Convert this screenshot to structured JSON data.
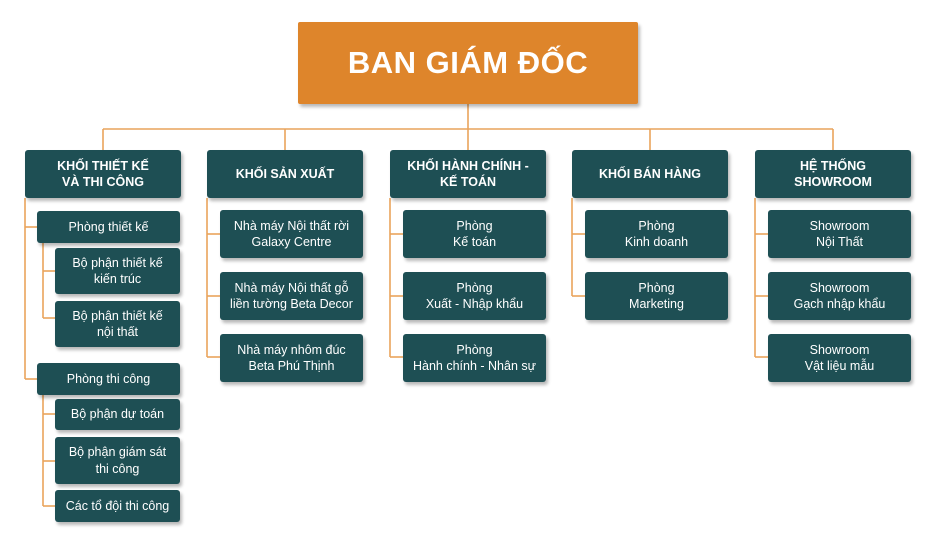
{
  "top": {
    "label": "BAN GIÁM ĐỐC"
  },
  "columns": [
    {
      "header": "KHỐI THIẾT KẾ\nVÀ THI CÔNG",
      "groups": [
        {
          "label": "Phòng thiết kế",
          "subitems": [
            "Bộ phận thiết kế\nkiến trúc",
            "Bộ phận thiết kế\nnội thất"
          ]
        },
        {
          "label": "Phòng thi công",
          "subitems": [
            "Bộ phận dự toán",
            "Bộ phận giám sát\nthi công",
            "Các tổ đội thi công"
          ]
        }
      ]
    },
    {
      "header": "KHỐI SẢN XUẤT",
      "items": [
        "Nhà máy Nội thất rời\nGalaxy Centre",
        "Nhà máy Nội thất gỗ\nliền tường Beta Decor",
        "Nhà máy nhôm đúc\nBeta Phú Thịnh"
      ]
    },
    {
      "header": "KHỐI HÀNH CHÍNH -\nKẾ TOÁN",
      "items": [
        "Phòng\nKế toán",
        "Phòng\nXuất - Nhập khẩu",
        "Phòng\nHành chính - Nhân sự"
      ]
    },
    {
      "header": "KHỐI BÁN HÀNG",
      "items": [
        "Phòng\nKinh doanh",
        "Phòng\nMarketing"
      ]
    },
    {
      "header": "HỆ THỐNG\nSHOWROOM",
      "items": [
        "Showroom\nNội Thất",
        "Showroom\nGạch nhập khẩu",
        "Showroom\nVật liệu mẫu"
      ]
    }
  ],
  "colors": {
    "top_fill": "#de852b",
    "box_fill": "#1e4f54",
    "connector": "#e9a35c",
    "text": "#ffffff"
  }
}
